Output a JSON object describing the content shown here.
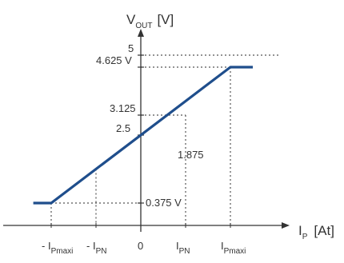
{
  "chart_data": {
    "type": "line",
    "title": "",
    "y_axis": {
      "label_main": "V",
      "label_sub": "OUT",
      "unit": "[V]"
    },
    "x_axis": {
      "label_main": "I",
      "label_sub": "P",
      "unit": "[At]"
    },
    "y_ticks": [
      {
        "value": 5,
        "label": "5"
      },
      {
        "value": 4.625,
        "label": "4.625 V"
      },
      {
        "value": 3.125,
        "label": "3.125"
      },
      {
        "value": 2.5,
        "label": "2.5"
      },
      {
        "value": 0.375,
        "label": "0.375 V"
      }
    ],
    "x_ticks": [
      {
        "value": -2,
        "main": "- I",
        "sub": "Pmaxi"
      },
      {
        "value": -1,
        "main": "- I",
        "sub": "PN"
      },
      {
        "value": 0,
        "main": "0",
        "sub": ""
      },
      {
        "value": 1,
        "main": "I",
        "sub": "PN"
      },
      {
        "value": 2,
        "main": "I",
        "sub": "Pmaxi"
      }
    ],
    "annotation": {
      "label": "1.875",
      "x": 1,
      "y_from": 2.5,
      "y_to": 3.125
    },
    "series": [
      {
        "color": "#1f4e8c",
        "points": [
          {
            "x": -2.4,
            "y": 0.375
          },
          {
            "x": -2,
            "y": 0.375
          },
          {
            "x": 2,
            "y": 4.625
          },
          {
            "x": 2.5,
            "y": 4.625
          }
        ]
      }
    ],
    "xlim": [
      -2.4,
      2.5
    ],
    "ylim": [
      0.375,
      5
    ],
    "grid": false,
    "legend": "none"
  }
}
